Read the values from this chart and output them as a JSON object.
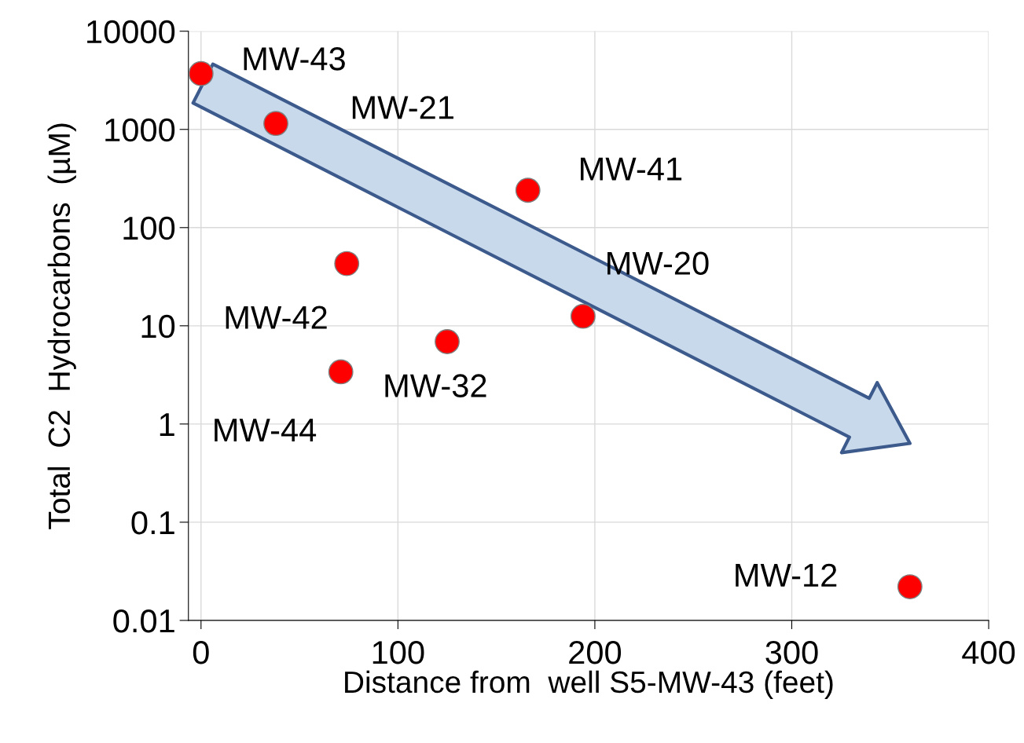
{
  "chart_data": {
    "type": "scatter",
    "xlabel": "Distance from  well S5-MW-43 (feet)",
    "ylabel": "Total  C2  Hydrocarbons  (µM)",
    "x": [
      0,
      38,
      166,
      74,
      194,
      125,
      71,
      360
    ],
    "series": [
      {
        "color": "#ff0000",
        "values": [
          3700,
          1150,
          240,
          43,
          12.5,
          6.9,
          3.4,
          0.022
        ]
      }
    ],
    "annotations": [
      {
        "text": "MW-43",
        "x": 0,
        "y": 3700
      },
      {
        "text": "MW-21",
        "x": 38,
        "y": 1150
      },
      {
        "text": "MW-41",
        "x": 166,
        "y": 240
      },
      {
        "text": "MW-42",
        "x": 74,
        "y": 43
      },
      {
        "text": "MW-20",
        "x": 194,
        "y": 12.5
      },
      {
        "text": "MW-32",
        "x": 125,
        "y": 6.9
      },
      {
        "text": "MW-44",
        "x": 71,
        "y": 3.4
      },
      {
        "text": "MW-12",
        "x": 360,
        "y": 0.022
      }
    ],
    "log": "y",
    "xlim": [
      -6.4,
      400
    ],
    "ylim": [
      0.01,
      10000
    ],
    "xticks": [
      0,
      100,
      200,
      300,
      400
    ],
    "yticks": [
      0.01,
      0.1,
      1,
      10,
      100,
      1000,
      10000
    ],
    "grid": true,
    "marker": "circle",
    "legend": false
  }
}
